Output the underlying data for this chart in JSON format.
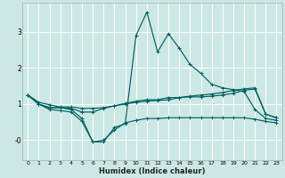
{
  "title": "",
  "xlabel": "Humidex (Indice chaleur)",
  "ylabel": "",
  "bg_color": "#cce8e4",
  "line_color": "#006060",
  "grid_color": "#ffffff",
  "xlim": [
    -0.5,
    23.5
  ],
  "ylim": [
    -0.55,
    3.8
  ],
  "yticks": [
    0,
    1,
    2,
    3
  ],
  "ytick_labels": [
    "-0",
    "1",
    "2",
    "3"
  ],
  "xticks": [
    0,
    1,
    2,
    3,
    4,
    5,
    6,
    7,
    8,
    9,
    10,
    11,
    12,
    13,
    14,
    15,
    16,
    17,
    18,
    19,
    20,
    21,
    22,
    23
  ],
  "lines": [
    {
      "x": [
        0,
        1,
        2,
        3,
        4,
        5,
        6,
        7,
        8,
        9,
        10,
        11,
        12,
        13,
        14,
        15,
        16,
        17,
        18,
        19,
        20,
        21,
        22,
        23
      ],
      "y": [
        1.25,
        1.0,
        0.9,
        0.9,
        0.85,
        0.6,
        -0.05,
        -0.05,
        0.35,
        0.45,
        2.9,
        3.55,
        2.45,
        2.95,
        2.55,
        2.1,
        1.85,
        1.55,
        1.45,
        1.4,
        1.35,
        0.85,
        0.6,
        0.55
      ]
    },
    {
      "x": [
        0,
        1,
        2,
        3,
        4,
        5,
        6,
        7,
        8,
        9,
        10,
        11,
        12,
        13,
        14,
        15,
        16,
        17,
        18,
        19,
        20,
        21,
        22,
        23
      ],
      "y": [
        1.25,
        1.0,
        0.9,
        0.9,
        0.88,
        0.78,
        0.78,
        0.88,
        0.95,
        1.02,
        1.08,
        1.12,
        1.12,
        1.18,
        1.18,
        1.2,
        1.2,
        1.22,
        1.25,
        1.3,
        1.38,
        1.42,
        0.72,
        0.62
      ]
    },
    {
      "x": [
        0,
        1,
        2,
        3,
        4,
        5,
        6,
        7,
        8,
        9,
        10,
        11,
        12,
        13,
        14,
        15,
        16,
        17,
        18,
        19,
        20,
        21,
        22,
        23
      ],
      "y": [
        1.25,
        1.05,
        0.98,
        0.92,
        0.92,
        0.88,
        0.88,
        0.9,
        0.95,
        1.0,
        1.05,
        1.08,
        1.1,
        1.12,
        1.18,
        1.22,
        1.25,
        1.28,
        1.32,
        1.38,
        1.42,
        1.45,
        0.72,
        0.62
      ]
    },
    {
      "x": [
        0,
        1,
        2,
        3,
        4,
        5,
        6,
        7,
        8,
        9,
        10,
        11,
        12,
        13,
        14,
        15,
        16,
        17,
        18,
        19,
        20,
        21,
        22,
        23
      ],
      "y": [
        1.25,
        1.0,
        0.85,
        0.82,
        0.78,
        0.52,
        -0.05,
        0.0,
        0.28,
        0.48,
        0.55,
        0.6,
        0.6,
        0.62,
        0.62,
        0.62,
        0.62,
        0.62,
        0.62,
        0.62,
        0.62,
        0.58,
        0.52,
        0.48
      ]
    }
  ]
}
